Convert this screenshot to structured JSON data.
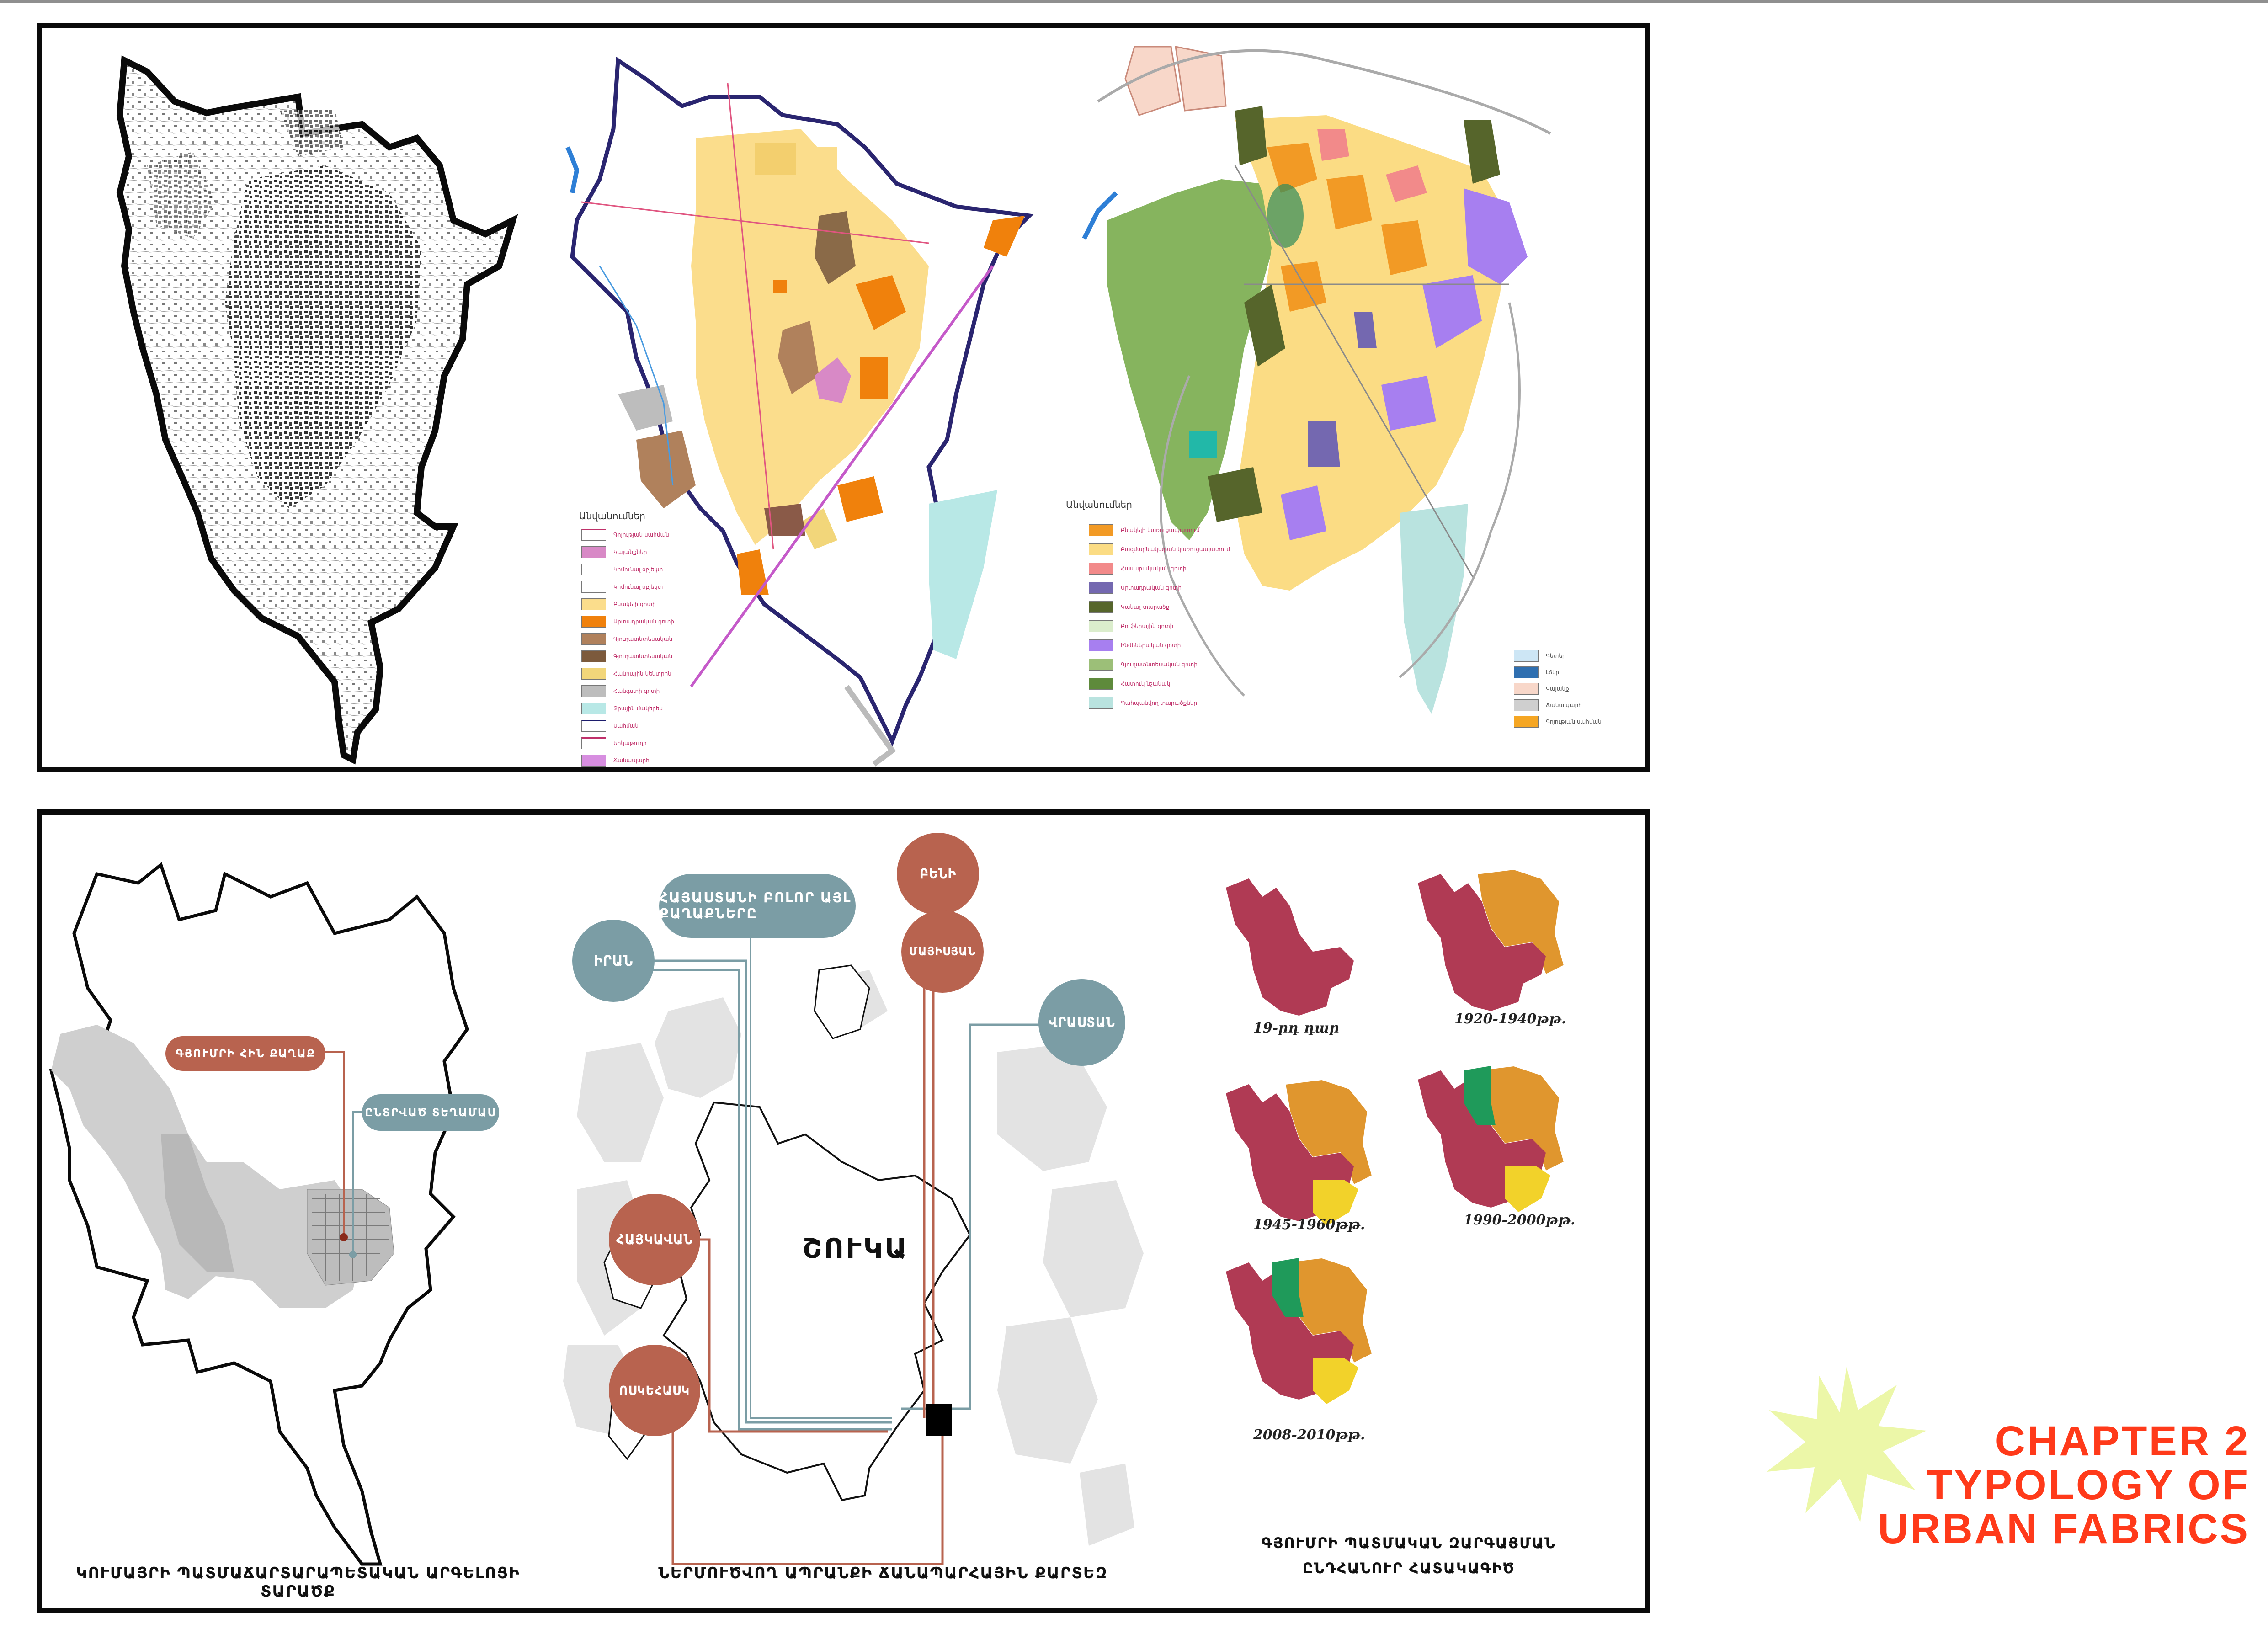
{
  "colors": {
    "frame": "#0a0a0a",
    "rust": "#b8634f",
    "teal": "#7b9da5",
    "crimson": "#b03a54",
    "orange": "#e0962e",
    "yellow": "#f2d22a",
    "green": "#1f9a5a",
    "chapter_text": "#ff3a1a",
    "starburst": "#ecf7a8"
  },
  "top_panel": {
    "map1_name": "black building footprint map",
    "map2_legend": {
      "title": "Անվանումներ",
      "items": [
        {
          "label": "Գոյության սահման",
          "color": "#ffffff",
          "border": "#c0306a"
        },
        {
          "label": "Կայանքներ",
          "color": "#d889c6"
        },
        {
          "label": "Կոմունալ օբյեկտ",
          "color": "#ffffff"
        },
        {
          "label": "Կոմունալ օբյեկտ",
          "color": "#ffffff"
        },
        {
          "label": "Բնակելի գոտի",
          "color": "#fbdd8c"
        },
        {
          "label": "Արտադրական գոտի",
          "color": "#f0810c"
        },
        {
          "label": "Գյուղատնտեսական",
          "color": "#b0815c"
        },
        {
          "label": "Գյուղատնտեսական",
          "color": "#7c5a3c"
        },
        {
          "label": "Հանրային կենտրոն",
          "color": "#f2d67a"
        },
        {
          "label": "Հանգստի գոտի",
          "color": "#bdbdbd"
        },
        {
          "label": "Ջրային մակերես",
          "color": "#b8e8e6"
        },
        {
          "label": "Սահման",
          "color": "#ffffff",
          "border": "#1c1c6c"
        },
        {
          "label": "Երկաթուղի",
          "color": "#ffffff",
          "border": "#c0306a"
        },
        {
          "label": "Ճանապարհ",
          "color": "#d78ee0"
        }
      ]
    },
    "map3_legend": {
      "title": "Անվանումներ",
      "items": [
        {
          "label": "Բնակելի կառուցապատում",
          "color": "#f29a25"
        },
        {
          "label": "Բազմաբնակարան կառուցապատում",
          "color": "#fbdc84"
        },
        {
          "label": "Հասարակական գոտի",
          "color": "#f28a8a"
        },
        {
          "label": "Արտադրական գոտի",
          "color": "#7468b0"
        },
        {
          "label": "Կանաչ տարածք",
          "color": "#56652b"
        },
        {
          "label": "Բուֆերային գոտի",
          "color": "#dbedcc"
        },
        {
          "label": "Ինժեներական գոտի",
          "color": "#a77ff0"
        },
        {
          "label": "Գյուղատնտեսական գոտի",
          "color": "#9cbf78"
        },
        {
          "label": "Հատուկ նշանակ",
          "color": "#5e8a3b"
        },
        {
          "label": "Պահպանվող տարածքներ",
          "color": "#b9e3df"
        }
      ],
      "extra_items": [
        {
          "label": "Գետեր",
          "color": "#cde6f5"
        },
        {
          "label": "Լճեր",
          "color": "#2f6fb0"
        },
        {
          "label": "Կայանք",
          "color": "#f8d7c9"
        },
        {
          "label": "Ճանապարհ",
          "color": "#cfcfcf"
        },
        {
          "label": "Գոյության սահման",
          "color": "#f5a623"
        }
      ]
    }
  },
  "bottom_panel": {
    "left": {
      "label_rust": "ԳՅՈՒՄՐԻ ՀԻՆ ՔԱՂԱՔ",
      "label_teal": "ԸՆՏՐՎԱԾ ՏԵՂԱՄԱՍ",
      "caption": "ԿՈՒՄԱՅՐԻ ՊԱՏՄԱՃԱՐՏԱՐԱՊԵՏԱԿԱՆ ԱՐԳԵԼՈՑԻ ՏԱՐԱԾՔ"
    },
    "middle": {
      "hub": "ՇՈՒԿԱ",
      "teal_pill": "ՀԱՅԱՍՏԱՆԻ ԲՈԼՈՐ ԱՅԼ ՔԱՂԱՔՆԵՐԸ",
      "teal_left": "ԻՐԱՆ",
      "teal_right": "ՎՐԱՍՏԱՆ",
      "rust_top1": "ԲԵՆԻ",
      "rust_top2": "ՄԱՅԻՍՅԱՆ",
      "rust_left1": "ՀԱՅԿԱՎԱՆ",
      "rust_left2": "ՈՍԿԵՀԱՍԿ",
      "caption": "ՆԵՐՄՈՒԾՎՈՂ ԱՊՐԱՆՔԻ ՃԱՆԱՊԱՐՀԱՅԻՆ ՔԱՐՏԵԶ"
    },
    "right": {
      "periods": [
        "19-րդ դար",
        "1920-1940թթ.",
        "1945-1960թթ.",
        "1990-2000թթ.",
        "2008-2010թթ."
      ],
      "caption_line1": "ԳՅՈՒՄՐԻ ՊԱՏՄԱԿԱՆ ԶԱՐԳԱՑՄԱՆ",
      "caption_line2": "ԸՆԴՀԱՆՈՒՐ ՀԱՏԱԿԱԳԻԾ"
    }
  },
  "chapter": {
    "line1": "CHAPTER 2",
    "line2": "TYPOLOGY OF",
    "line3": "URBAN FABRICS"
  }
}
